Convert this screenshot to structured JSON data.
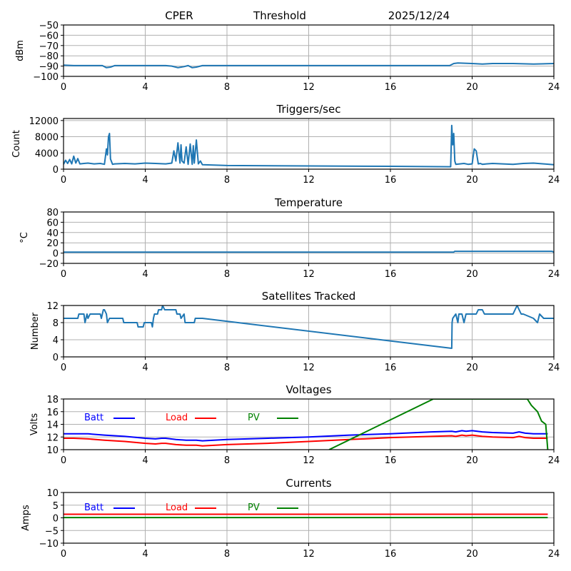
{
  "header": {
    "station": "CPER",
    "plot": "Threshold",
    "date": "2025/12/24"
  },
  "chart_data": [
    {
      "id": "threshold",
      "type": "line",
      "title": "",
      "xlabel": "",
      "ylabel": "dBm",
      "xlim": [
        0,
        24
      ],
      "ylim": [
        -100,
        -50
      ],
      "xticks": [
        0,
        4,
        8,
        12,
        16,
        20,
        24
      ],
      "yticks": [
        -100,
        -90,
        -80,
        -70,
        -60,
        -50
      ],
      "ytick_labels": [
        "−100",
        "−90",
        "−80",
        "−70",
        "−60",
        "−50"
      ],
      "grid": true,
      "series": [
        {
          "name": "threshold",
          "color": "#1f77b4",
          "x": [
            0,
            0.5,
            1,
            1.9,
            2.1,
            2.3,
            2.5,
            3,
            4,
            5,
            5.3,
            5.6,
            5.9,
            6.1,
            6.3,
            6.5,
            6.8,
            8,
            12,
            16,
            18.9,
            19.1,
            19.3,
            20,
            20.5,
            21,
            22,
            23,
            24
          ],
          "y": [
            -89,
            -89.5,
            -89.5,
            -89.5,
            -91.5,
            -91,
            -89.5,
            -89.5,
            -89.5,
            -89.5,
            -90,
            -91.5,
            -90.5,
            -89.5,
            -91.5,
            -91,
            -89.5,
            -89.5,
            -89.5,
            -89.5,
            -89.5,
            -87.5,
            -87,
            -87.5,
            -88,
            -87.5,
            -87.5,
            -88,
            -87.5
          ]
        }
      ]
    },
    {
      "id": "triggers",
      "type": "line",
      "title": "Triggers/sec",
      "xlabel": "",
      "ylabel": "Count",
      "xlim": [
        0,
        24
      ],
      "ylim": [
        0,
        12500
      ],
      "xticks": [
        0,
        4,
        8,
        12,
        16,
        20,
        24
      ],
      "yticks": [
        0,
        4000,
        8000,
        12000
      ],
      "ytick_labels": [
        "0",
        "4000",
        "8000",
        "12000"
      ],
      "grid": true,
      "series": [
        {
          "name": "triggers",
          "color": "#1f77b4",
          "x": [
            0,
            0.1,
            0.2,
            0.3,
            0.4,
            0.5,
            0.6,
            0.7,
            0.8,
            1.0,
            1.2,
            1.5,
            1.8,
            2.0,
            2.1,
            2.15,
            2.2,
            2.25,
            2.3,
            2.4,
            2.5,
            3.0,
            3.5,
            4.0,
            4.5,
            5.0,
            5.3,
            5.4,
            5.5,
            5.6,
            5.7,
            5.75,
            5.8,
            5.9,
            6.0,
            6.1,
            6.2,
            6.3,
            6.35,
            6.4,
            6.5,
            6.6,
            6.7,
            6.8,
            8,
            12,
            16,
            18.95,
            19.0,
            19.05,
            19.1,
            19.15,
            19.2,
            19.4,
            19.6,
            19.8,
            20.0,
            20.1,
            20.2,
            20.3,
            20.4,
            20.5,
            20.7,
            21,
            21.5,
            22,
            22.5,
            23,
            23.5,
            24
          ],
          "y": [
            1200,
            2200,
            1400,
            2400,
            1300,
            3200,
            1500,
            2600,
            1300,
            1400,
            1500,
            1300,
            1400,
            1200,
            5000,
            3500,
            8000,
            8800,
            2500,
            1200,
            1300,
            1400,
            1300,
            1500,
            1400,
            1300,
            1500,
            4500,
            2000,
            6500,
            1500,
            6000,
            2000,
            1500,
            5500,
            1200,
            6200,
            1200,
            5800,
            1500,
            7200,
            1300,
            2000,
            1100,
            900,
            800,
            700,
            600,
            10800,
            6000,
            8800,
            2000,
            1200,
            1300,
            1400,
            1200,
            1300,
            5000,
            4500,
            1300,
            1400,
            1200,
            1300,
            1400,
            1300,
            1200,
            1400,
            1500,
            1300,
            1100
          ]
        }
      ]
    },
    {
      "id": "temperature",
      "type": "line",
      "title": "Temperature",
      "xlabel": "",
      "ylabel": "°C",
      "xlim": [
        0,
        24
      ],
      "ylim": [
        -20,
        80
      ],
      "xticks": [
        0,
        4,
        8,
        12,
        16,
        20,
        24
      ],
      "yticks": [
        -20,
        0,
        20,
        40,
        60,
        80
      ],
      "ytick_labels": [
        "−20",
        "0",
        "20",
        "40",
        "60",
        "80"
      ],
      "grid": true,
      "series": [
        {
          "name": "temperature",
          "color": "#1f77b4",
          "x": [
            0,
            19.1,
            19.15,
            23.9,
            24
          ],
          "y": [
            2,
            2,
            3.5,
            3.5,
            2
          ]
        }
      ]
    },
    {
      "id": "satellites",
      "type": "line",
      "title": "Satellites Tracked",
      "xlabel": "",
      "ylabel": "Number",
      "xlim": [
        0,
        24
      ],
      "ylim": [
        0,
        12
      ],
      "xticks": [
        0,
        4,
        8,
        12,
        16,
        20,
        24
      ],
      "yticks": [
        0,
        4,
        8,
        12
      ],
      "ytick_labels": [
        "0",
        "4",
        "8",
        "12"
      ],
      "grid": true,
      "series": [
        {
          "name": "satellites",
          "color": "#1f77b4",
          "x": [
            0,
            0.7,
            0.75,
            1.0,
            1.05,
            1.15,
            1.2,
            1.3,
            1.35,
            1.8,
            1.85,
            1.95,
            2.0,
            2.1,
            2.15,
            2.25,
            2.3,
            2.9,
            2.95,
            3.6,
            3.65,
            3.9,
            3.95,
            4.3,
            4.35,
            4.4,
            4.45,
            4.6,
            4.65,
            4.8,
            4.85,
            4.95,
            5.0,
            5.5,
            5.55,
            5.7,
            5.75,
            5.9,
            5.95,
            6.4,
            6.45,
            6.8,
            19.0,
            19.02,
            19.05,
            19.2,
            19.3,
            19.35,
            19.5,
            19.6,
            19.7,
            19.8,
            19.9,
            20.2,
            20.3,
            20.5,
            20.6,
            21.0,
            22.0,
            22.1,
            22.2,
            22.3,
            22.4,
            22.5,
            23.0,
            23.2,
            23.3,
            23.5,
            24
          ],
          "y": [
            9,
            9,
            10,
            10,
            8,
            10,
            9,
            10,
            10,
            10,
            9,
            11,
            11,
            10,
            8,
            9,
            9,
            9,
            8,
            8,
            7,
            7,
            8,
            8,
            7,
            9,
            10,
            10,
            11,
            11,
            12,
            11,
            11,
            11,
            10,
            10,
            9,
            10,
            8,
            8,
            9,
            9,
            2,
            8,
            9,
            10,
            8,
            10,
            10,
            8,
            10,
            10,
            10,
            10,
            11,
            11,
            10,
            10,
            10,
            11,
            12,
            11,
            10,
            10,
            9,
            8,
            10,
            9,
            9
          ]
        }
      ]
    },
    {
      "id": "voltages",
      "type": "line",
      "title": "Voltages",
      "xlabel": "",
      "ylabel": "Volts",
      "xlim": [
        0,
        24
      ],
      "ylim": [
        10,
        18
      ],
      "xticks": [
        0,
        4,
        8,
        12,
        16,
        20,
        24
      ],
      "yticks": [
        10,
        12,
        14,
        16,
        18
      ],
      "ytick_labels": [
        "10",
        "12",
        "14",
        "16",
        "18"
      ],
      "grid": true,
      "legend": {
        "placement": "top-left-inline",
        "entries": [
          {
            "label": "Batt",
            "color": "#0000ff"
          },
          {
            "label": "Load",
            "color": "#ff0000"
          },
          {
            "label": "PV",
            "color": "#008000"
          }
        ]
      },
      "series": [
        {
          "name": "Batt",
          "color": "#0000ff",
          "x": [
            0,
            0.5,
            1.2,
            2,
            3,
            4,
            4.5,
            4.8,
            5,
            5.5,
            6,
            6.5,
            6.8,
            8,
            10,
            12,
            14,
            16,
            18,
            19,
            19.2,
            19.5,
            19.7,
            20,
            20.5,
            21,
            22,
            22.3,
            22.6,
            23,
            23.7
          ],
          "y": [
            12.5,
            12.5,
            12.5,
            12.3,
            12.1,
            11.8,
            11.7,
            11.8,
            11.8,
            11.6,
            11.5,
            11.5,
            11.4,
            11.6,
            11.8,
            12.0,
            12.3,
            12.5,
            12.8,
            12.9,
            12.8,
            13.0,
            12.9,
            13.0,
            12.8,
            12.7,
            12.6,
            12.8,
            12.6,
            12.5,
            12.5
          ]
        },
        {
          "name": "Load",
          "color": "#ff0000",
          "x": [
            0,
            0.5,
            1.2,
            2,
            3,
            4,
            4.5,
            4.8,
            5,
            5.5,
            6,
            6.5,
            6.8,
            8,
            10,
            12,
            14,
            16,
            18,
            19,
            19.2,
            19.5,
            19.7,
            20,
            20.5,
            21,
            22,
            22.3,
            22.6,
            23,
            23.7
          ],
          "y": [
            11.8,
            11.8,
            11.7,
            11.5,
            11.3,
            11.0,
            10.9,
            11.0,
            11.0,
            10.8,
            10.7,
            10.7,
            10.6,
            10.8,
            11.0,
            11.3,
            11.6,
            11.9,
            12.1,
            12.2,
            12.1,
            12.3,
            12.2,
            12.3,
            12.1,
            12.0,
            11.9,
            12.1,
            11.9,
            11.8,
            11.8
          ]
        },
        {
          "name": "PV",
          "color": "#008000",
          "x": [
            13.0,
            18.1,
            22.7,
            22.9,
            23.2,
            23.4,
            23.6,
            23.7
          ],
          "y": [
            10,
            18,
            18,
            17.0,
            16.0,
            14.5,
            14.0,
            10
          ]
        }
      ]
    },
    {
      "id": "currents",
      "type": "line",
      "title": "Currents",
      "xlabel": "",
      "ylabel": "Amps",
      "xlim": [
        0,
        24
      ],
      "ylim": [
        -10,
        10
      ],
      "xticks": [
        0,
        4,
        8,
        12,
        16,
        20,
        24
      ],
      "yticks": [
        -10,
        -5,
        0,
        5,
        10
      ],
      "ytick_labels": [
        "−10",
        "−5",
        "0",
        "5",
        "10"
      ],
      "grid": true,
      "legend": {
        "placement": "top-left-inline",
        "entries": [
          {
            "label": "Batt",
            "color": "#0000ff"
          },
          {
            "label": "Load",
            "color": "#ff0000"
          },
          {
            "label": "PV",
            "color": "#008000"
          }
        ]
      },
      "series": [
        {
          "name": "Batt",
          "color": "#0000ff",
          "x": [
            0,
            23.7
          ],
          "y": [
            1.4,
            1.4
          ]
        },
        {
          "name": "Load",
          "color": "#ff0000",
          "x": [
            0,
            23.7
          ],
          "y": [
            1.4,
            1.4
          ]
        },
        {
          "name": "PV",
          "color": "#008000",
          "x": [
            0,
            23.7
          ],
          "y": [
            0.1,
            0.1
          ]
        }
      ]
    }
  ]
}
